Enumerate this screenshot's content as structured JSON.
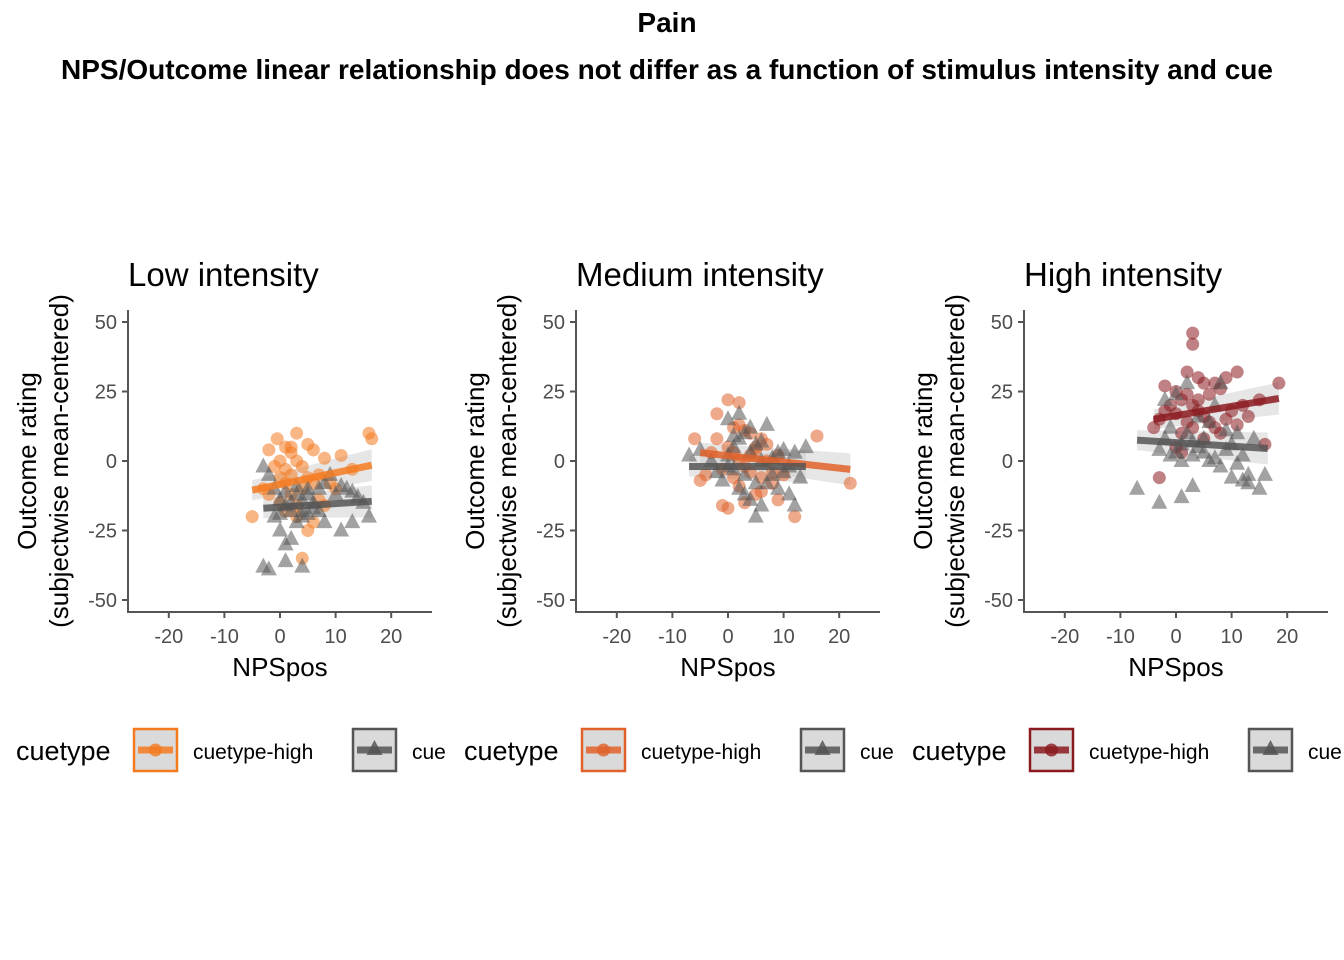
{
  "title": "Pain",
  "subtitle": "NPS/Outcome linear relationship does not differ as a function of stimulus intensity and cue",
  "colors": {
    "grey": "#555555",
    "ribbon": "#c8c8c8",
    "axis": "#555555"
  },
  "chart_data": [
    {
      "type": "scatter",
      "title": "Low intensity",
      "xlabel": "NPSpos",
      "ylabel": [
        "Outcome rating",
        "(subjectwise mean-centered)"
      ],
      "xlim": [
        -28,
        27
      ],
      "ylim": [
        -55,
        55
      ],
      "xticks": [
        -20,
        -10,
        0,
        10,
        20
      ],
      "yticks": [
        -50,
        -25,
        0,
        25,
        50
      ],
      "legend": {
        "title": "cuetype",
        "items": [
          "cuetype-high",
          "cue"
        ]
      },
      "series": [
        {
          "name": "cuetype-high",
          "color": "#f47a20",
          "marker": "circle",
          "fit": {
            "x": [
              -5,
              16.5
            ],
            "y": [
              -10.5,
              -1.5
            ]
          },
          "points": [
            [
              -0.5,
              8
            ],
            [
              1,
              5
            ],
            [
              2,
              5
            ],
            [
              3,
              10
            ],
            [
              5,
              6
            ],
            [
              6,
              4
            ],
            [
              8,
              1
            ],
            [
              -2,
              4
            ],
            [
              -1,
              -2
            ],
            [
              0,
              0
            ],
            [
              1,
              -3
            ],
            [
              2,
              -5
            ],
            [
              3,
              0
            ],
            [
              4,
              -2
            ],
            [
              5,
              -6
            ],
            [
              6,
              -8
            ],
            [
              7,
              -5
            ],
            [
              9,
              -8
            ],
            [
              10,
              -10
            ],
            [
              11,
              2
            ],
            [
              13,
              -3
            ],
            [
              16,
              10
            ],
            [
              16.5,
              8
            ],
            [
              -5,
              -20
            ],
            [
              -3,
              -10
            ],
            [
              -2,
              -12
            ],
            [
              0,
              -15
            ],
            [
              1,
              -18
            ],
            [
              3,
              -20
            ],
            [
              5,
              -25
            ],
            [
              6,
              -22
            ],
            [
              4,
              -35
            ],
            [
              1,
              -8
            ],
            [
              2,
              -12
            ],
            [
              7,
              -14
            ],
            [
              8,
              -16
            ],
            [
              0,
              -6
            ],
            [
              4,
              -10
            ],
            [
              3,
              -16
            ],
            [
              2,
              3
            ]
          ]
        },
        {
          "name": "cue",
          "color": "#555555",
          "marker": "triangle",
          "fit": {
            "x": [
              -3,
              16.5
            ],
            "y": [
              -17,
              -14.5
            ]
          },
          "points": [
            [
              -3,
              -38
            ],
            [
              -2,
              -39
            ],
            [
              1,
              -36
            ],
            [
              4,
              -38
            ],
            [
              -3,
              -2
            ],
            [
              -2,
              -5
            ],
            [
              -1,
              -20
            ],
            [
              0,
              -25
            ],
            [
              1,
              -30
            ],
            [
              2,
              -28
            ],
            [
              3,
              -22
            ],
            [
              4,
              -18
            ],
            [
              5,
              -12
            ],
            [
              6,
              -15
            ],
            [
              7,
              -10
            ],
            [
              8,
              -8
            ],
            [
              9,
              -5
            ],
            [
              10,
              -12
            ],
            [
              11,
              -9
            ],
            [
              12,
              -10
            ],
            [
              13,
              -11
            ],
            [
              14,
              -13
            ],
            [
              15,
              -15
            ],
            [
              16,
              -20
            ],
            [
              -1,
              -10
            ],
            [
              0,
              -14
            ],
            [
              1,
              -16
            ],
            [
              2,
              -18
            ],
            [
              3,
              -12
            ],
            [
              4,
              -20
            ],
            [
              5,
              -19
            ],
            [
              6,
              -17
            ],
            [
              11,
              -25
            ],
            [
              13,
              -22
            ],
            [
              2,
              -15
            ],
            [
              3,
              -9
            ],
            [
              0,
              -19
            ],
            [
              1,
              -11
            ],
            [
              4,
              -14
            ],
            [
              7,
              -18
            ],
            [
              8,
              -22
            ],
            [
              5,
              -10
            ]
          ]
        }
      ]
    },
    {
      "type": "scatter",
      "title": "Medium intensity",
      "xlabel": "NPSpos",
      "ylabel": [
        "Outcome rating",
        "(subjectwise mean-centered)"
      ],
      "xlim": [
        -28,
        27
      ],
      "ylim": [
        -55,
        55
      ],
      "xticks": [
        -20,
        -10,
        0,
        10,
        20
      ],
      "yticks": [
        -50,
        -25,
        0,
        25,
        50
      ],
      "legend": {
        "title": "cuetype",
        "items": [
          "cuetype-high",
          "cue"
        ]
      },
      "series": [
        {
          "name": "cuetype-high",
          "color": "#e0622a",
          "marker": "circle",
          "fit": {
            "x": [
              -5,
              22
            ],
            "y": [
              3,
              -3
            ]
          },
          "points": [
            [
              0,
              22
            ],
            [
              2,
              21
            ],
            [
              -2,
              17
            ],
            [
              -6,
              8
            ],
            [
              -2,
              8
            ],
            [
              0,
              5
            ],
            [
              1,
              3
            ],
            [
              2,
              0
            ],
            [
              3,
              -2
            ],
            [
              4,
              2
            ],
            [
              5,
              5
            ],
            [
              6,
              8
            ],
            [
              7,
              0
            ],
            [
              8,
              -4
            ],
            [
              9,
              2
            ],
            [
              10,
              -5
            ],
            [
              -5,
              -7
            ],
            [
              -4,
              -5
            ],
            [
              -1,
              -16
            ],
            [
              0,
              -17
            ],
            [
              3,
              -15
            ],
            [
              5,
              -12
            ],
            [
              12,
              -20
            ],
            [
              16,
              9
            ],
            [
              22,
              -8
            ],
            [
              1,
              -6
            ],
            [
              2,
              -9
            ],
            [
              4,
              -4
            ],
            [
              6,
              -11
            ],
            [
              3,
              11
            ],
            [
              -3,
              3
            ],
            [
              -1,
              -3
            ],
            [
              1,
              12
            ],
            [
              2,
              13
            ],
            [
              4,
              10
            ],
            [
              7,
              6
            ],
            [
              8,
              -8
            ],
            [
              9,
              -14
            ],
            [
              6,
              -6
            ],
            [
              5,
              4
            ]
          ]
        },
        {
          "name": "cue",
          "color": "#555555",
          "marker": "triangle",
          "fit": {
            "x": [
              -7,
              14
            ],
            "y": [
              -2,
              -2
            ]
          },
          "points": [
            [
              -7,
              2
            ],
            [
              -5,
              4
            ],
            [
              -2,
              -4
            ],
            [
              0,
              2
            ],
            [
              1,
              5
            ],
            [
              2,
              8
            ],
            [
              3,
              10
            ],
            [
              4,
              12
            ],
            [
              5,
              6
            ],
            [
              6,
              0
            ],
            [
              7,
              13
            ],
            [
              8,
              -5
            ],
            [
              9,
              -10
            ],
            [
              10,
              4
            ],
            [
              11,
              -2
            ],
            [
              12,
              3
            ],
            [
              14,
              5
            ],
            [
              -3,
              0
            ],
            [
              -1,
              -7
            ],
            [
              1,
              -3
            ],
            [
              2,
              -10
            ],
            [
              3,
              -12
            ],
            [
              4,
              -14
            ],
            [
              5,
              -20
            ],
            [
              6,
              -16
            ],
            [
              7,
              -8
            ],
            [
              8,
              1
            ],
            [
              9,
              3
            ],
            [
              10,
              -4
            ],
            [
              11,
              -12
            ],
            [
              12,
              -16
            ],
            [
              13,
              -6
            ],
            [
              0,
              15
            ],
            [
              2,
              17
            ],
            [
              0,
              -2
            ],
            [
              3,
              -5
            ],
            [
              5,
              -8
            ],
            [
              4,
              3
            ],
            [
              6,
              7
            ],
            [
              1,
              9
            ]
          ]
        }
      ]
    },
    {
      "type": "scatter",
      "title": "High intensity",
      "xlabel": "NPSpos",
      "ylabel": [
        "Outcome rating",
        "(subjectwise mean-centered)"
      ],
      "xlim": [
        -28,
        27
      ],
      "ylim": [
        -55,
        55
      ],
      "xticks": [
        -20,
        -10,
        0,
        10,
        20
      ],
      "yticks": [
        -50,
        -25,
        0,
        25,
        50
      ],
      "legend": {
        "title": "cuetype",
        "items": [
          "cuetype-high",
          "cue"
        ]
      },
      "series": [
        {
          "name": "cuetype-high",
          "color": "#8b1a1f",
          "marker": "circle",
          "fit": {
            "x": [
              -4,
              18.5
            ],
            "y": [
              15,
              22.5
            ]
          },
          "points": [
            [
              3,
              46
            ],
            [
              3,
              42
            ],
            [
              -2,
              27
            ],
            [
              0,
              25
            ],
            [
              2,
              32
            ],
            [
              4,
              30
            ],
            [
              5,
              28
            ],
            [
              7,
              28
            ],
            [
              9,
              30
            ],
            [
              11,
              32
            ],
            [
              15,
              22
            ],
            [
              16,
              6
            ],
            [
              18.5,
              28
            ],
            [
              -4,
              12
            ],
            [
              -3,
              15
            ],
            [
              -2,
              18
            ],
            [
              -1,
              20
            ],
            [
              0,
              17
            ],
            [
              1,
              22
            ],
            [
              2,
              24
            ],
            [
              3,
              20
            ],
            [
              4,
              18
            ],
            [
              5,
              16
            ],
            [
              6,
              14
            ],
            [
              7,
              12
            ],
            [
              8,
              10
            ],
            [
              9,
              15
            ],
            [
              10,
              18
            ],
            [
              11,
              13
            ],
            [
              12,
              20
            ],
            [
              13,
              16
            ],
            [
              -3,
              -6
            ],
            [
              0,
              5
            ],
            [
              1,
              10
            ],
            [
              2,
              14
            ],
            [
              4,
              22
            ],
            [
              6,
              24
            ],
            [
              8,
              26
            ],
            [
              3,
              12
            ],
            [
              5,
              8
            ],
            [
              1,
              3
            ]
          ]
        },
        {
          "name": "cue",
          "color": "#555555",
          "marker": "triangle",
          "fit": {
            "x": [
              -7,
              16.5
            ],
            "y": [
              7.5,
              4.5
            ]
          },
          "points": [
            [
              -7,
              -10
            ],
            [
              -3,
              -15
            ],
            [
              1,
              -13
            ],
            [
              3,
              -9
            ],
            [
              -3,
              4
            ],
            [
              -2,
              8
            ],
            [
              -1,
              12
            ],
            [
              0,
              3
            ],
            [
              1,
              6
            ],
            [
              2,
              10
            ],
            [
              3,
              2
            ],
            [
              4,
              5
            ],
            [
              5,
              8
            ],
            [
              6,
              14
            ],
            [
              7,
              20
            ],
            [
              8,
              28
            ],
            [
              9,
              4
            ],
            [
              10,
              6
            ],
            [
              11,
              10
            ],
            [
              12,
              2
            ],
            [
              13,
              -5
            ],
            [
              14,
              8
            ],
            [
              15,
              -10
            ],
            [
              16,
              -5
            ],
            [
              -2,
              22
            ],
            [
              0,
              24
            ],
            [
              2,
              28
            ],
            [
              4,
              16
            ],
            [
              6,
              0
            ],
            [
              8,
              -2
            ],
            [
              10,
              -6
            ],
            [
              12,
              -7
            ],
            [
              -1,
              2
            ],
            [
              1,
              0
            ],
            [
              3,
              7
            ],
            [
              5,
              3
            ],
            [
              7,
              1
            ],
            [
              9,
              11
            ],
            [
              11,
              -1
            ],
            [
              13,
              -8
            ]
          ]
        }
      ]
    }
  ]
}
